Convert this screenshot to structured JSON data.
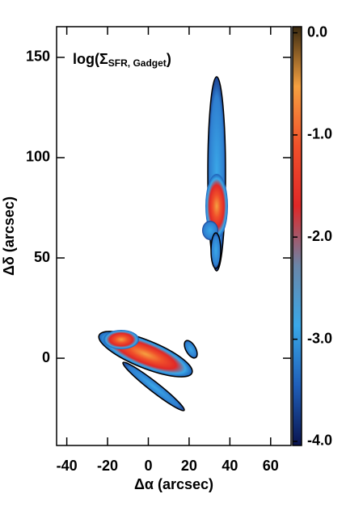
{
  "chart_data": {
    "type": "map",
    "title": "log(Σ",
    "title_subscript": "SFR, Gadget",
    "title_end": ")",
    "x_label": "Δα (arcsec)",
    "y_label": "Δδ (arcsec)",
    "xlim": [
      -45,
      70
    ],
    "xticks": [
      -40,
      -20,
      0,
      20,
      40,
      60
    ],
    "ylim": [
      -43.5,
      165.3
    ],
    "yticks": [
      0,
      50,
      100,
      150
    ],
    "colorbar": {
      "lim": [
        -4.04,
        0.06
      ],
      "ticks": [
        {
          "value": 0,
          "label": "0.0"
        },
        {
          "value": -1,
          "label": "-1.0"
        },
        {
          "value": -2,
          "label": "-2.0"
        },
        {
          "value": -3,
          "label": "-3.0"
        },
        {
          "value": -4,
          "label": "-4.0"
        }
      ],
      "colors": [
        "#0a1450",
        "#1f5fb8",
        "#3aa8e8",
        "#6a86a8",
        "#e02828",
        "#f0502a",
        "#f5a040",
        "#3a2a10"
      ]
    }
  }
}
